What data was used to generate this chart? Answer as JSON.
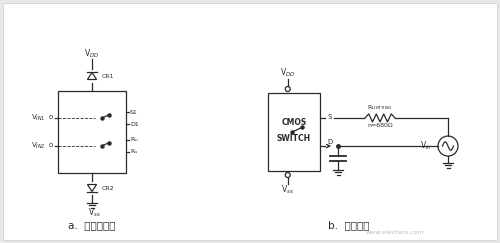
{
  "bg_color": "#e8e8e8",
  "fig_bg": "#e8e8e8",
  "panel_bg": "#ffffff",
  "label_a": "a.  二极管保护",
  "label_b": "b.  限流保护",
  "line_color": "#2a2a2a",
  "text_color": "#2a2a2a",
  "watermark": "www.elecfans.com",
  "watermark_color": "#bbbbbb"
}
